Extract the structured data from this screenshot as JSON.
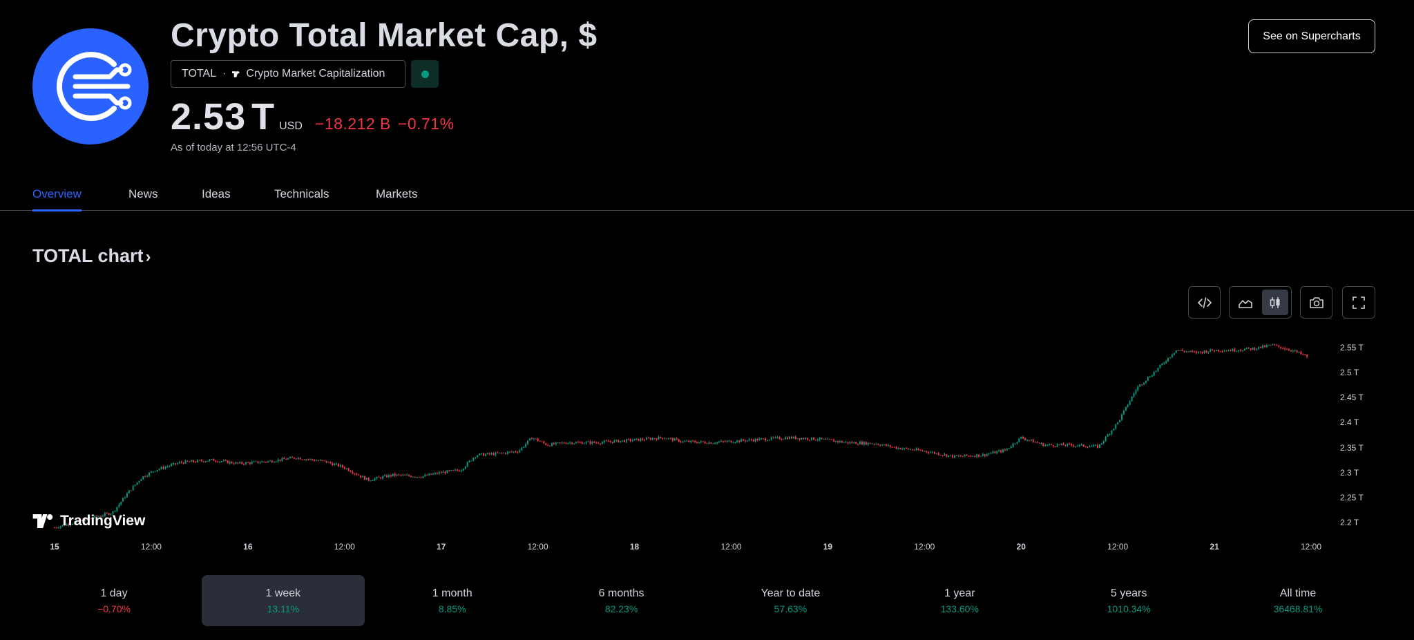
{
  "header": {
    "title": "Crypto Total Market Cap, $",
    "symbol": "TOTAL",
    "separator": "·",
    "source": "Crypto Market Capitalization",
    "price": "2.53",
    "price_suffix": "T",
    "currency": "USD",
    "change_abs": "−18.212 B",
    "change_pct": "−0.71%",
    "as_of": "As of today at 12:56 UTC-4",
    "market_status_color": "#089981",
    "logo_icon": "circuit-lines-icon",
    "logo_color": "#2962ff"
  },
  "supercharts_label": "See on Supercharts",
  "tabs": [
    {
      "label": "Overview",
      "active": true
    },
    {
      "label": "News"
    },
    {
      "label": "Ideas"
    },
    {
      "label": "Technicals"
    },
    {
      "label": "Markets"
    }
  ],
  "chart_section": {
    "title": "TOTAL chart",
    "chevron": "›",
    "watermark": "TradingView",
    "toolbar": {
      "embed_icon": "code-icon",
      "area_icon": "area-chart-icon",
      "candles_icon": "candles-icon",
      "screenshot_icon": "camera-icon",
      "fullscreen_icon": "fullscreen-icon",
      "selected_style": "candles"
    }
  },
  "chart_data": {
    "type": "candlestick",
    "x_ticks": [
      {
        "label": "15",
        "bold": true
      },
      {
        "label": "12:00"
      },
      {
        "label": "16",
        "bold": true
      },
      {
        "label": "12:00"
      },
      {
        "label": "17",
        "bold": true
      },
      {
        "label": "12:00"
      },
      {
        "label": "18",
        "bold": true
      },
      {
        "label": "12:00"
      },
      {
        "label": "19",
        "bold": true
      },
      {
        "label": "12:00"
      },
      {
        "label": "20",
        "bold": true
      },
      {
        "label": "12:00"
      },
      {
        "label": "21",
        "bold": true
      },
      {
        "label": "12:00"
      }
    ],
    "y_ticks": [
      "2.55 T",
      "2.5 T",
      "2.45 T",
      "2.4 T",
      "2.35 T",
      "2.3 T",
      "2.25 T",
      "2.2 T"
    ],
    "y_tick_values": [
      2.55,
      2.5,
      2.45,
      2.4,
      2.35,
      2.3,
      2.25,
      2.2
    ],
    "ylim": [
      2.19,
      2.575
    ],
    "x_range_days": [
      0,
      6.55
    ],
    "series": [
      {
        "values": [
          [
            0.0,
            2.19
          ],
          [
            0.3,
            2.22
          ],
          [
            0.38,
            2.26
          ],
          [
            0.45,
            2.29
          ],
          [
            0.52,
            2.305
          ],
          [
            0.65,
            2.32
          ],
          [
            0.82,
            2.325
          ],
          [
            0.95,
            2.318
          ],
          [
            1.1,
            2.322
          ],
          [
            1.25,
            2.33
          ],
          [
            1.4,
            2.322
          ],
          [
            1.5,
            2.31
          ],
          [
            1.62,
            2.285
          ],
          [
            1.75,
            2.295
          ],
          [
            1.9,
            2.292
          ],
          [
            2.0,
            2.3
          ],
          [
            2.1,
            2.305
          ],
          [
            2.18,
            2.335
          ],
          [
            2.3,
            2.338
          ],
          [
            2.4,
            2.343
          ],
          [
            2.47,
            2.37
          ],
          [
            2.55,
            2.355
          ],
          [
            2.65,
            2.36
          ],
          [
            2.8,
            2.36
          ],
          [
            3.0,
            2.365
          ],
          [
            3.15,
            2.37
          ],
          [
            3.25,
            2.362
          ],
          [
            3.4,
            2.36
          ],
          [
            3.6,
            2.365
          ],
          [
            3.8,
            2.37
          ],
          [
            3.95,
            2.367
          ],
          [
            4.1,
            2.36
          ],
          [
            4.25,
            2.358
          ],
          [
            4.35,
            2.35
          ],
          [
            4.5,
            2.343
          ],
          [
            4.65,
            2.332
          ],
          [
            4.8,
            2.335
          ],
          [
            4.92,
            2.345
          ],
          [
            5.0,
            2.37
          ],
          [
            5.12,
            2.355
          ],
          [
            5.25,
            2.355
          ],
          [
            5.4,
            2.352
          ],
          [
            5.5,
            2.4
          ],
          [
            5.6,
            2.47
          ],
          [
            5.7,
            2.505
          ],
          [
            5.8,
            2.545
          ],
          [
            5.9,
            2.54
          ],
          [
            6.0,
            2.545
          ],
          [
            6.1,
            2.545
          ],
          [
            6.2,
            2.548
          ],
          [
            6.3,
            2.555
          ],
          [
            6.4,
            2.545
          ],
          [
            6.48,
            2.532
          ]
        ]
      }
    ],
    "up_color": "#089981",
    "down_color": "#f23645"
  },
  "periods": [
    {
      "label": "1 day",
      "value": "−0.70%",
      "dir": "neg"
    },
    {
      "label": "1 week",
      "value": "13.11%",
      "dir": "pos",
      "active": true
    },
    {
      "label": "1 month",
      "value": "8.85%",
      "dir": "pos"
    },
    {
      "label": "6 months",
      "value": "82.23%",
      "dir": "pos"
    },
    {
      "label": "Year to date",
      "value": "57.63%",
      "dir": "pos"
    },
    {
      "label": "1 year",
      "value": "133.60%",
      "dir": "pos"
    },
    {
      "label": "5 years",
      "value": "1010.34%",
      "dir": "pos"
    },
    {
      "label": "All time",
      "value": "36468.81%",
      "dir": "pos"
    }
  ]
}
